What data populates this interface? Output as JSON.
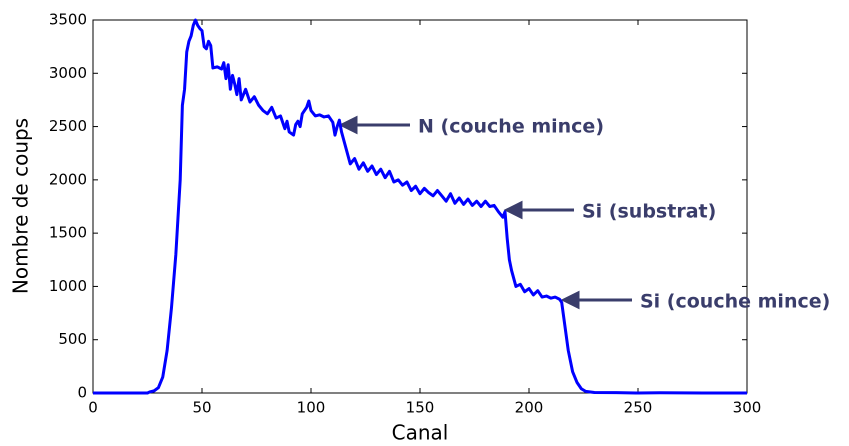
{
  "chart_data": {
    "type": "line",
    "x_label": "Canal",
    "y_label": "Nombre de coups",
    "xlim": [
      0,
      300
    ],
    "ylim": [
      0,
      3500
    ],
    "xticks": [
      0,
      50,
      100,
      150,
      200,
      250,
      300
    ],
    "yticks": [
      0,
      500,
      1000,
      1500,
      2000,
      2500,
      3000,
      3500
    ],
    "grid": false,
    "series": [
      {
        "color": "#0000ff",
        "x": [
          0,
          10,
          20,
          25,
          26,
          28,
          30,
          32,
          34,
          36,
          38,
          40,
          41,
          42,
          43,
          44,
          45,
          46,
          47,
          48,
          49,
          50,
          51,
          52,
          53,
          54,
          55,
          57,
          59,
          60,
          61,
          62,
          63,
          64,
          65,
          66,
          67,
          68,
          70,
          72,
          74,
          76,
          78,
          80,
          82,
          84,
          86,
          88,
          89,
          90,
          92,
          93,
          94,
          95,
          96,
          98,
          99,
          100,
          102,
          104,
          106,
          108,
          110,
          111,
          112,
          113,
          114,
          116,
          118,
          120,
          122,
          124,
          126,
          128,
          130,
          132,
          134,
          136,
          138,
          140,
          142,
          144,
          146,
          148,
          150,
          152,
          154,
          156,
          158,
          160,
          162,
          164,
          166,
          168,
          170,
          172,
          174,
          176,
          178,
          180,
          182,
          184,
          186,
          188,
          189,
          190,
          191,
          192,
          194,
          196,
          198,
          200,
          202,
          204,
          206,
          208,
          210,
          212,
          214,
          215,
          216,
          218,
          220,
          222,
          224,
          226,
          230,
          240,
          250,
          260,
          280,
          300
        ],
        "values": [
          0,
          0,
          0,
          0,
          10,
          20,
          50,
          150,
          400,
          800,
          1300,
          2000,
          2700,
          2850,
          3200,
          3300,
          3350,
          3450,
          3500,
          3450,
          3420,
          3400,
          3250,
          3230,
          3300,
          3260,
          3050,
          3060,
          3040,
          3100,
          2950,
          3080,
          2850,
          2980,
          2900,
          2800,
          2950,
          2750,
          2850,
          2730,
          2780,
          2700,
          2650,
          2620,
          2680,
          2580,
          2600,
          2480,
          2550,
          2450,
          2420,
          2520,
          2550,
          2500,
          2620,
          2680,
          2740,
          2650,
          2600,
          2610,
          2590,
          2600,
          2540,
          2420,
          2500,
          2560,
          2450,
          2300,
          2150,
          2200,
          2100,
          2160,
          2080,
          2130,
          2050,
          2100,
          2020,
          2080,
          1980,
          2000,
          1950,
          1980,
          1900,
          1940,
          1870,
          1920,
          1880,
          1850,
          1900,
          1850,
          1800,
          1870,
          1780,
          1830,
          1770,
          1820,
          1760,
          1800,
          1750,
          1800,
          1750,
          1760,
          1700,
          1650,
          1700,
          1450,
          1250,
          1150,
          1000,
          1020,
          950,
          980,
          920,
          960,
          900,
          910,
          890,
          900,
          880,
          850,
          700,
          400,
          200,
          100,
          40,
          15,
          5,
          3,
          0,
          2,
          0,
          0
        ]
      }
    ],
    "annotations": [
      "N (couche mince)",
      "Si (substrat)",
      "Si (couche mince)"
    ]
  }
}
